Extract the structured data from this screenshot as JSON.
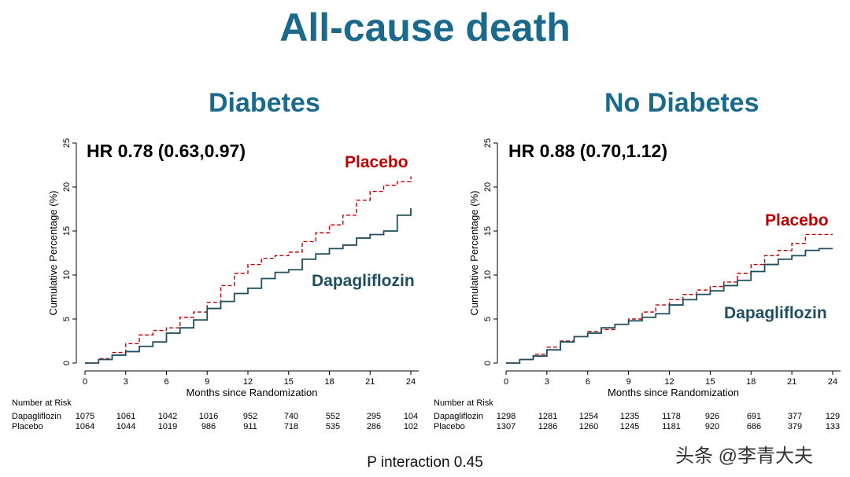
{
  "title": "All-cause death",
  "panels": [
    {
      "title": "Diabetes",
      "hr_text": "HR 0.78 (0.63,0.97)",
      "placebo_label": "Placebo",
      "dapa_label": "Dapagliflozin"
    },
    {
      "title": "No Diabetes",
      "hr_text": "HR 0.88 (0.70,1.12)",
      "placebo_label": "Placebo",
      "dapa_label": "Dapagliflozin"
    }
  ],
  "p_interaction": "P interaction 0.45",
  "watermark": "头条 @李青大夫",
  "colors": {
    "title": "#1b6a8c",
    "placebo": "#c00000",
    "dapa": "#1f4e5f",
    "axis": "#000000"
  },
  "chart_data": [
    {
      "type": "line",
      "title": "Diabetes",
      "xlabel": "Months since Randomization",
      "ylabel": "Cumulative Percentage (%)",
      "xlim": [
        0,
        24
      ],
      "ylim": [
        0,
        25
      ],
      "xticks": [
        0,
        3,
        6,
        9,
        12,
        15,
        18,
        21,
        24
      ],
      "yticks": [
        0,
        5,
        10,
        15,
        20,
        25
      ],
      "series": [
        {
          "name": "Placebo",
          "style": "dashed",
          "x": [
            0,
            1,
            2,
            3,
            4,
            5,
            6,
            7,
            8,
            9,
            10,
            11,
            12,
            13,
            14,
            15,
            16,
            17,
            18,
            19,
            20,
            21,
            22,
            23,
            24
          ],
          "y": [
            0,
            0.5,
            1.2,
            2.2,
            3.2,
            3.7,
            4.0,
            5.2,
            5.8,
            6.9,
            8.8,
            10.2,
            11.2,
            11.9,
            12.2,
            12.6,
            13.8,
            14.8,
            15.7,
            16.8,
            18.5,
            19.5,
            20.2,
            20.6,
            21.2
          ]
        },
        {
          "name": "Dapagliflozin",
          "style": "solid",
          "x": [
            0,
            1,
            2,
            3,
            4,
            5,
            6,
            7,
            8,
            9,
            10,
            11,
            12,
            13,
            14,
            15,
            16,
            17,
            18,
            19,
            20,
            21,
            22,
            23,
            24
          ],
          "y": [
            0,
            0.4,
            0.9,
            1.3,
            1.9,
            2.4,
            3.4,
            4.0,
            4.9,
            6.2,
            7.0,
            7.9,
            8.5,
            9.6,
            10.3,
            10.6,
            11.8,
            12.4,
            13.0,
            13.4,
            14.2,
            14.6,
            15.0,
            16.8,
            17.6
          ]
        }
      ],
      "risk_table": {
        "header": "Number at Risk",
        "rows": [
          {
            "label": "Dapagliflozin",
            "values": [
              "1075",
              "1061",
              "1042",
              "1016",
              "952",
              "740",
              "552",
              "295",
              "104"
            ]
          },
          {
            "label": "Placebo",
            "values": [
              "1064",
              "1044",
              "1019",
              "986",
              "911",
              "718",
              "535",
              "286",
              "102"
            ]
          }
        ]
      }
    },
    {
      "type": "line",
      "title": "No Diabetes",
      "xlabel": "Months since Randomization",
      "ylabel": "Cumulative Percentage (%)",
      "xlim": [
        0,
        24
      ],
      "ylim": [
        0,
        25
      ],
      "xticks": [
        0,
        3,
        6,
        9,
        12,
        15,
        18,
        21,
        24
      ],
      "yticks": [
        0,
        5,
        10,
        15,
        20,
        25
      ],
      "series": [
        {
          "name": "Placebo",
          "style": "dashed",
          "x": [
            0,
            1,
            2,
            3,
            4,
            5,
            6,
            7,
            8,
            9,
            10,
            11,
            12,
            13,
            14,
            15,
            16,
            17,
            18,
            19,
            20,
            21,
            22,
            23,
            24
          ],
          "y": [
            0,
            0.4,
            1.0,
            1.8,
            2.5,
            3.0,
            3.6,
            3.8,
            4.4,
            5.0,
            5.8,
            6.6,
            7.2,
            7.8,
            8.3,
            8.7,
            9.2,
            10.2,
            11.2,
            12.2,
            12.8,
            13.6,
            14.6,
            14.6,
            14.6
          ]
        },
        {
          "name": "Dapagliflozin",
          "style": "solid",
          "x": [
            0,
            1,
            2,
            3,
            4,
            5,
            6,
            7,
            8,
            9,
            10,
            11,
            12,
            13,
            14,
            15,
            16,
            17,
            18,
            19,
            20,
            21,
            22,
            23,
            24
          ],
          "y": [
            0,
            0.4,
            0.8,
            1.5,
            2.4,
            3.0,
            3.4,
            4.0,
            4.4,
            4.8,
            5.2,
            5.6,
            6.6,
            7.2,
            7.8,
            8.2,
            8.8,
            9.4,
            10.4,
            11.2,
            11.8,
            12.2,
            12.8,
            13.0,
            13.0
          ]
        }
      ],
      "risk_table": {
        "header": "Number at Risk",
        "rows": [
          {
            "label": "Dapagliflozin",
            "values": [
              "1298",
              "1281",
              "1254",
              "1235",
              "1178",
              "926",
              "691",
              "377",
              "129"
            ]
          },
          {
            "label": "Placebo",
            "values": [
              "1307",
              "1286",
              "1260",
              "1245",
              "1181",
              "920",
              "686",
              "379",
              "133"
            ]
          }
        ]
      }
    }
  ]
}
